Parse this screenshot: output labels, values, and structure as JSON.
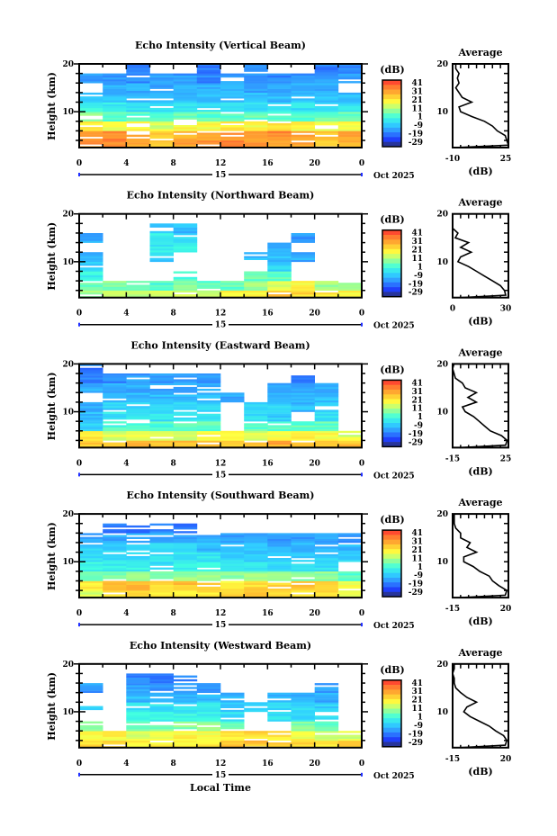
{
  "colorbar": {
    "title": "(dB)",
    "labels": [
      "41",
      "31",
      "21",
      "11",
      "1",
      "-9",
      "-19",
      "-29"
    ],
    "min": -29,
    "max": 41,
    "colors": [
      "#2b2f6b",
      "#2040ff",
      "#3090ff",
      "#30d0ff",
      "#40ffe0",
      "#a0ff90",
      "#ffff40",
      "#ffc030",
      "#ff8030",
      "#ff3030"
    ]
  },
  "bottom_label": "Local Time",
  "chart_data": [
    {
      "type": "heatmap",
      "title": "Echo Intensity (Vertical Beam)",
      "ylabel": "Height (km)",
      "ylim": [
        2.5,
        20
      ],
      "yticks": [
        "20",
        "10"
      ],
      "xticks": [
        "0",
        "4",
        "8",
        "12",
        "16",
        "20",
        "0"
      ],
      "date_day": "15",
      "date_label": "Oct 2025",
      "x_hours": [
        1,
        3,
        5,
        7,
        9,
        11,
        13,
        15,
        17,
        19,
        21,
        23
      ],
      "heights_km": [
        3,
        5,
        7,
        9,
        11,
        13,
        15,
        17,
        19
      ],
      "values_db": [
        [
          30,
          30,
          28,
          25,
          28,
          30,
          32,
          30,
          30,
          28,
          25,
          28
        ],
        [
          32,
          33,
          30,
          25,
          28,
          30,
          30,
          28,
          32,
          30,
          25,
          30
        ],
        [
          20,
          18,
          18,
          15,
          18,
          18,
          20,
          18,
          20,
          18,
          15,
          18
        ],
        [
          8,
          5,
          5,
          3,
          5,
          5,
          5,
          5,
          5,
          3,
          5,
          5
        ],
        [
          0,
          -2,
          -3,
          -3,
          -3,
          -3,
          -3,
          -3,
          -3,
          -3,
          -2,
          -3
        ],
        [
          -5,
          -8,
          -8,
          -8,
          -8,
          -8,
          -8,
          -8,
          -8,
          -8,
          -8,
          -8
        ],
        [
          null,
          -10,
          -10,
          -12,
          -10,
          -10,
          -10,
          -12,
          -10,
          -10,
          -10,
          null
        ],
        [
          -12,
          -12,
          -14,
          -12,
          -12,
          -14,
          -12,
          -12,
          -14,
          -12,
          -12,
          -12
        ],
        [
          null,
          null,
          -15,
          null,
          null,
          -15,
          null,
          -15,
          null,
          null,
          -15,
          -15
        ]
      ],
      "average": {
        "title": "Average",
        "xlabel": "(dB)",
        "xlim": [
          -10,
          25
        ],
        "xticks": [
          "-10",
          "25"
        ],
        "heights_km": [
          2.5,
          3,
          4,
          5,
          6,
          7,
          8,
          9,
          10,
          11,
          12,
          13,
          14,
          15,
          16,
          17,
          18,
          19,
          20
        ],
        "values_db": [
          -8,
          25,
          24,
          23,
          18,
          15,
          10,
          2,
          -5,
          -6,
          2,
          -4,
          -6,
          -8,
          -6,
          -7,
          -6,
          -8,
          -8
        ]
      }
    },
    {
      "type": "heatmap",
      "title": "Echo Intensity (Northward Beam)",
      "ylabel": "Height (km)",
      "ylim": [
        2.5,
        20
      ],
      "yticks": [
        "20",
        "10"
      ],
      "xticks": [
        "0",
        "4",
        "8",
        "12",
        "16",
        "20",
        "0"
      ],
      "date_day": "15",
      "date_label": "Oct 2025",
      "x_hours": [
        1,
        3,
        5,
        7,
        9,
        11,
        13,
        15,
        17,
        19,
        21,
        23
      ],
      "heights_km": [
        3,
        5,
        7,
        9,
        11,
        13,
        15,
        17,
        19
      ],
      "values_db": [
        [
          10,
          15,
          12,
          15,
          15,
          12,
          18,
          20,
          25,
          22,
          20,
          18
        ],
        [
          5,
          8,
          5,
          3,
          8,
          5,
          5,
          10,
          15,
          18,
          10,
          8
        ],
        [
          0,
          null,
          null,
          null,
          3,
          null,
          null,
          5,
          5,
          null,
          null,
          null
        ],
        [
          -5,
          null,
          null,
          null,
          null,
          null,
          null,
          null,
          -5,
          null,
          null,
          null
        ],
        [
          -8,
          null,
          null,
          -5,
          null,
          null,
          null,
          -8,
          -8,
          -10,
          null,
          null
        ],
        [
          null,
          null,
          null,
          -2,
          0,
          null,
          null,
          null,
          -10,
          null,
          null,
          null
        ],
        [
          -10,
          null,
          null,
          0,
          -3,
          null,
          null,
          null,
          null,
          -12,
          null,
          null
        ],
        [
          null,
          null,
          null,
          -8,
          -8,
          null,
          null,
          null,
          null,
          null,
          null,
          null
        ],
        [
          null,
          null,
          null,
          null,
          null,
          null,
          null,
          null,
          null,
          null,
          null,
          null
        ]
      ],
      "average": {
        "title": "Average",
        "xlabel": "(dB)",
        "xlim": [
          -12,
          30
        ],
        "xticks": [
          "0",
          "30"
        ],
        "heights_km": [
          2.5,
          3,
          4,
          5,
          6,
          7,
          8,
          9,
          10,
          11,
          12,
          13,
          14,
          15,
          16,
          17,
          18,
          19,
          20
        ],
        "values_db": [
          -5,
          28,
          27,
          24,
          18,
          12,
          6,
          0,
          -8,
          -6,
          2,
          -6,
          0,
          -10,
          -8,
          -12,
          -12,
          -14,
          -14
        ]
      }
    },
    {
      "type": "heatmap",
      "title": "Echo Intensity (Eastward Beam)",
      "ylabel": "Height (km)",
      "ylim": [
        2.5,
        20
      ],
      "yticks": [
        "20",
        "10"
      ],
      "xticks": [
        "0",
        "4",
        "8",
        "12",
        "16",
        "20",
        "0"
      ],
      "date_day": "15",
      "date_label": "Oct 2025",
      "x_hours": [
        1,
        3,
        5,
        7,
        9,
        11,
        13,
        15,
        17,
        19,
        21,
        23
      ],
      "heights_km": [
        3,
        5,
        7,
        9,
        11,
        13,
        15,
        17,
        19
      ],
      "values_db": [
        [
          25,
          25,
          25,
          25,
          25,
          25,
          25,
          25,
          28,
          25,
          25,
          25
        ],
        [
          20,
          15,
          15,
          15,
          15,
          18,
          18,
          15,
          18,
          20,
          18,
          15
        ],
        [
          -5,
          3,
          3,
          3,
          5,
          5,
          null,
          5,
          5,
          5,
          5,
          null
        ],
        [
          -8,
          -3,
          -3,
          -3,
          -3,
          -3,
          null,
          -3,
          -5,
          null,
          -3,
          null
        ],
        [
          -10,
          -5,
          -5,
          -5,
          -5,
          -5,
          null,
          -5,
          -5,
          -8,
          -5,
          null
        ],
        [
          null,
          -8,
          -8,
          -8,
          -8,
          -8,
          -10,
          null,
          -10,
          -8,
          -8,
          null
        ],
        [
          -10,
          -10,
          -10,
          -10,
          -10,
          -10,
          null,
          null,
          -12,
          -10,
          -10,
          null
        ],
        [
          -15,
          -14,
          -12,
          -12,
          -12,
          -12,
          null,
          null,
          null,
          -14,
          null,
          null
        ],
        [
          -15,
          null,
          null,
          null,
          null,
          null,
          null,
          null,
          null,
          null,
          null,
          null
        ]
      ],
      "average": {
        "title": "Average",
        "xlabel": "(dB)",
        "xlim": [
          -15,
          25
        ],
        "xticks": [
          "-15",
          "25"
        ],
        "heights_km": [
          2.5,
          3,
          4,
          5,
          6,
          7,
          8,
          9,
          10,
          11,
          12,
          13,
          14,
          15,
          16,
          17,
          18,
          19,
          20
        ],
        "values_db": [
          -10,
          23,
          24,
          20,
          12,
          8,
          4,
          0,
          -6,
          -8,
          2,
          -4,
          2,
          -6,
          -8,
          -13,
          -14,
          -15,
          -14
        ]
      }
    },
    {
      "type": "heatmap",
      "title": "Echo Intensity (Southward Beam)",
      "ylabel": "Height (km)",
      "ylim": [
        2.5,
        20
      ],
      "yticks": [
        "20",
        "10"
      ],
      "xticks": [
        "0",
        "4",
        "8",
        "12",
        "16",
        "20",
        "0"
      ],
      "date_day": "15",
      "date_label": "Oct 2025",
      "x_hours": [
        1,
        3,
        5,
        7,
        9,
        11,
        13,
        15,
        17,
        19,
        21,
        23
      ],
      "heights_km": [
        3,
        5,
        7,
        9,
        11,
        13,
        15,
        17,
        19
      ],
      "values_db": [
        [
          15,
          20,
          20,
          20,
          20,
          20,
          22,
          25,
          22,
          20,
          22,
          15
        ],
        [
          20,
          25,
          25,
          22,
          25,
          22,
          20,
          22,
          22,
          25,
          22,
          18
        ],
        [
          5,
          8,
          8,
          8,
          10,
          10,
          8,
          10,
          10,
          8,
          8,
          5
        ],
        [
          0,
          0,
          0,
          -3,
          0,
          0,
          -3,
          -3,
          -3,
          -3,
          -3,
          null
        ],
        [
          -3,
          -3,
          -3,
          -3,
          -3,
          -3,
          -5,
          -5,
          -5,
          -5,
          -5,
          -5
        ],
        [
          -5,
          -5,
          -5,
          -5,
          -5,
          -8,
          -8,
          -8,
          -10,
          -8,
          -8,
          -8
        ],
        [
          -10,
          -10,
          -10,
          -10,
          -10,
          -10,
          -12,
          -12,
          -12,
          -12,
          -10,
          -12
        ],
        [
          null,
          -15,
          -15,
          -15,
          -15,
          null,
          null,
          null,
          null,
          null,
          null,
          null
        ],
        [
          null,
          null,
          null,
          null,
          null,
          null,
          null,
          null,
          null,
          null,
          null,
          null
        ]
      ],
      "average": {
        "title": "Average",
        "xlabel": "(dB)",
        "xlim": [
          -15,
          20
        ],
        "xticks": [
          "-15",
          "20"
        ],
        "heights_km": [
          2.5,
          3,
          4,
          5,
          6,
          7,
          8,
          9,
          10,
          11,
          12,
          13,
          14,
          15,
          16,
          17,
          18,
          19,
          20
        ],
        "values_db": [
          -10,
          18,
          19,
          14,
          10,
          8,
          2,
          -2,
          -8,
          -8,
          0,
          -6,
          -4,
          -10,
          -10,
          -13,
          -14,
          -14,
          -14
        ]
      }
    },
    {
      "type": "heatmap",
      "title": "Echo Intensity (Westward Beam)",
      "ylabel": "Height (km)",
      "ylim": [
        2.5,
        20
      ],
      "yticks": [
        "20",
        "10"
      ],
      "xticks": [
        "0",
        "4",
        "8",
        "12",
        "16",
        "20",
        "0"
      ],
      "date_day": "15",
      "date_label": "Oct 2025",
      "x_hours": [
        1,
        3,
        5,
        7,
        9,
        11,
        13,
        15,
        17,
        19,
        21,
        23
      ],
      "heights_km": [
        3,
        5,
        7,
        9,
        11,
        13,
        15,
        17,
        19
      ],
      "values_db": [
        [
          22,
          22,
          20,
          20,
          20,
          20,
          25,
          25,
          22,
          22,
          20,
          22
        ],
        [
          18,
          18,
          15,
          15,
          18,
          18,
          20,
          22,
          20,
          18,
          15,
          15
        ],
        [
          10,
          null,
          8,
          8,
          8,
          8,
          5,
          null,
          null,
          8,
          5,
          null
        ],
        [
          null,
          null,
          0,
          0,
          0,
          0,
          -3,
          null,
          -3,
          -3,
          -3,
          null
        ],
        [
          -5,
          null,
          -3,
          -3,
          -3,
          -3,
          -5,
          -5,
          -5,
          -5,
          -5,
          null
        ],
        [
          null,
          null,
          -8,
          -8,
          -8,
          -8,
          -8,
          null,
          -10,
          -10,
          -10,
          null
        ],
        [
          -12,
          null,
          -12,
          -12,
          -12,
          -12,
          null,
          null,
          null,
          null,
          -12,
          null
        ],
        [
          null,
          null,
          -14,
          -14,
          -14,
          null,
          null,
          null,
          null,
          null,
          null,
          null
        ],
        [
          null,
          null,
          null,
          null,
          null,
          null,
          null,
          null,
          null,
          null,
          null,
          null
        ]
      ],
      "average": {
        "title": "Average",
        "xlabel": "(dB)",
        "xlim": [
          -15,
          20
        ],
        "xticks": [
          "-15",
          "20"
        ],
        "heights_km": [
          2.5,
          3,
          4,
          5,
          6,
          7,
          8,
          9,
          10,
          11,
          12,
          13,
          14,
          15,
          16,
          17,
          18,
          19,
          20
        ],
        "values_db": [
          -10,
          18,
          19,
          17,
          12,
          8,
          2,
          -4,
          -8,
          -6,
          0,
          -6,
          -10,
          -13,
          -14,
          -14,
          -15,
          -14,
          -14
        ]
      }
    }
  ]
}
